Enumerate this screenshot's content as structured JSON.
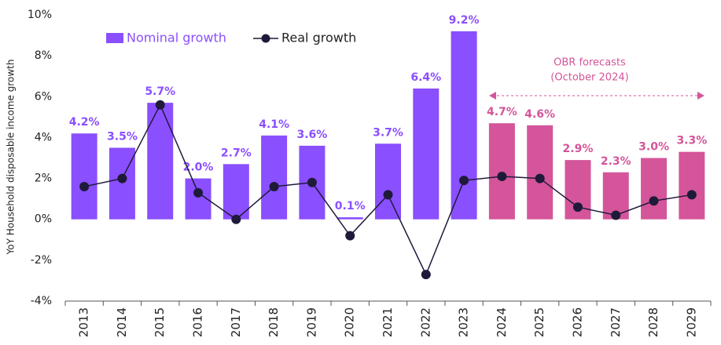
{
  "chart_data": {
    "type": "bar",
    "y_label": "YoY Household disposable income growth",
    "categories": [
      "2013",
      "2014",
      "2015",
      "2016",
      "2017",
      "2018",
      "2019",
      "2020",
      "2021",
      "2022",
      "2023",
      "2024",
      "2025",
      "2026",
      "2027",
      "2028",
      "2029"
    ],
    "series": [
      {
        "name": "Nominal growth",
        "type": "bar",
        "color": "#8a4fff",
        "colors": [
          "#8a4fff",
          "#8a4fff",
          "#8a4fff",
          "#8a4fff",
          "#8a4fff",
          "#8a4fff",
          "#8a4fff",
          "#8a4fff",
          "#8a4fff",
          "#8a4fff",
          "#8a4fff",
          "#d4559a",
          "#d4559a",
          "#d4559a",
          "#d4559a",
          "#d4559a",
          "#d4559a"
        ],
        "values": [
          4.2,
          3.5,
          5.7,
          2.0,
          2.7,
          4.1,
          3.6,
          0.1,
          3.7,
          6.4,
          9.2,
          4.7,
          4.6,
          2.9,
          2.3,
          3.0,
          3.3
        ],
        "value_labels": [
          "4.2%",
          "3.5%",
          "5.7%",
          "2.0%",
          "2.7%",
          "4.1%",
          "3.6%",
          "0.1%",
          "3.7%",
          "6.4%",
          "9.2%",
          "4.7%",
          "4.6%",
          "2.9%",
          "2.3%",
          "3.0%",
          "3.3%"
        ]
      },
      {
        "name": "Real growth",
        "type": "line",
        "color": "#1f1a3a",
        "values": [
          1.6,
          2.0,
          5.6,
          1.3,
          0.0,
          1.6,
          1.8,
          -0.8,
          1.2,
          -2.7,
          1.9,
          2.1,
          2.0,
          0.6,
          0.2,
          0.9,
          1.2
        ]
      }
    ],
    "annotation": [
      "OBR forecasts",
      "(October 2024)"
    ],
    "ylim": [
      -4,
      10
    ],
    "yticks": [
      {
        "value": -4,
        "label": "-4%"
      },
      {
        "value": -2,
        "label": "-2%"
      },
      {
        "value": 0,
        "label": "0%"
      },
      {
        "value": 2,
        "label": "2%"
      },
      {
        "value": 4,
        "label": "4%"
      },
      {
        "value": 6,
        "label": "6%"
      },
      {
        "value": 8,
        "label": "8%"
      },
      {
        "value": 10,
        "label": "10%"
      }
    ],
    "grid": false
  }
}
